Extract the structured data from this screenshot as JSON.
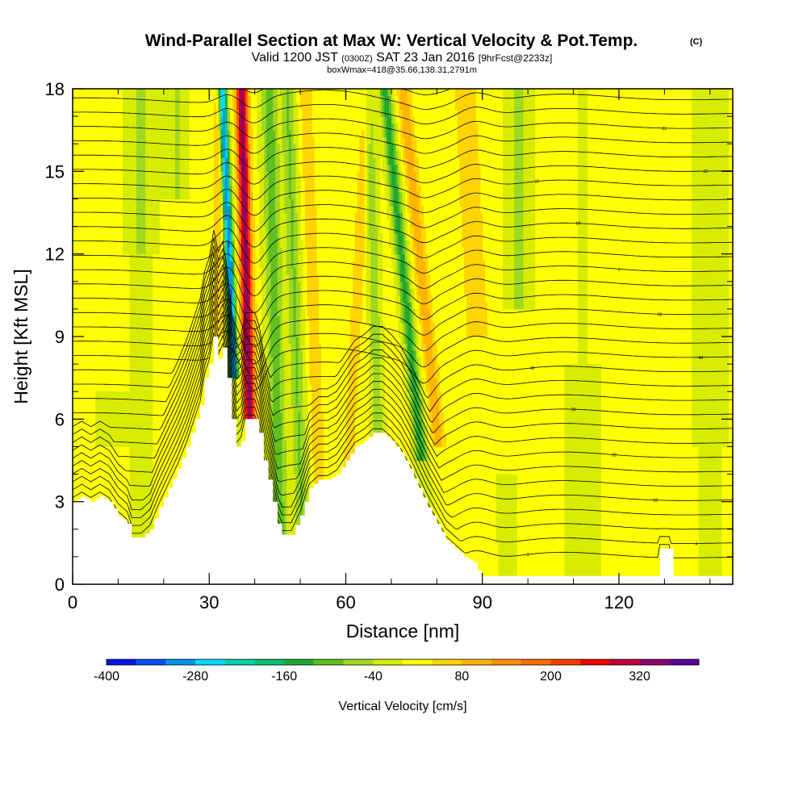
{
  "chart_data": {
    "type": "heatmap",
    "title": "Wind-Parallel Section at Max W: Vertical Velocity & Pot.Temp.",
    "title_mark": "(C)",
    "subtitle_parts": [
      "Valid 1200 JST",
      "(0300Z)",
      "SAT 23 Jan 2016",
      "[9hrFcst@2233z]"
    ],
    "subtitle2": "boxWmax=418@35.66,138.31,2791m",
    "xlabel": "Distance [nm]",
    "ylabel": "Height [Kft MSL]",
    "xlim": [
      0,
      145
    ],
    "ylim": [
      0,
      18
    ],
    "xticks": [
      0,
      30,
      60,
      90,
      120
    ],
    "xtick_labels": [
      "0",
      "30",
      "60",
      "90",
      "120"
    ],
    "yticks": [
      0,
      3,
      6,
      9,
      12,
      15,
      18
    ],
    "ytick_labels": [
      "0",
      "3",
      "6",
      "9",
      "12",
      "15",
      "18"
    ],
    "grid": false,
    "colorbar": {
      "title": "Vertical Velocity [cm/s]",
      "min": -400,
      "max": 400,
      "step": 40,
      "tick_values": [
        -400,
        -280,
        -160,
        -40,
        80,
        200,
        320
      ],
      "tick_labels": [
        "-400",
        "-280",
        "-160",
        "-40",
        "80",
        "200",
        "320"
      ],
      "colors": [
        "#0a14e6",
        "#0050f0",
        "#0094f0",
        "#00dcff",
        "#00d0a8",
        "#00c070",
        "#20a830",
        "#60c020",
        "#a0d820",
        "#d8ec00",
        "#ffff00",
        "#ffd400",
        "#ffb400",
        "#ff9000",
        "#ff6c00",
        "#ff3c00",
        "#ee0000",
        "#c0003a",
        "#8c006c",
        "#5a0096"
      ]
    },
    "terrain": {
      "x": [
        0,
        2,
        4,
        6,
        8,
        10,
        12,
        13,
        15,
        17,
        19,
        21,
        23,
        25,
        27,
        28,
        29,
        30,
        31,
        32,
        33,
        34,
        35,
        36,
        37,
        38,
        39,
        40,
        41,
        42,
        43,
        44,
        45,
        46,
        48,
        50,
        52,
        54,
        56,
        58,
        60,
        62,
        64,
        66,
        68,
        70,
        72,
        74,
        76,
        78,
        80,
        82,
        84,
        86,
        88,
        89,
        90,
        92,
        95,
        100,
        105,
        110,
        115,
        120,
        125,
        126,
        128,
        129,
        130,
        131,
        132,
        134,
        136,
        140,
        145
      ],
      "height": [
        3.0,
        3.2,
        3.0,
        3.2,
        3.0,
        2.5,
        2.2,
        1.7,
        1.7,
        2.0,
        2.8,
        3.5,
        4.2,
        5.0,
        6.0,
        6.5,
        7.5,
        8.0,
        9.0,
        8.2,
        8.6,
        7.5,
        6.0,
        5.0,
        5.2,
        6.0,
        6.0,
        6.0,
        5.5,
        4.5,
        3.8,
        3.0,
        2.2,
        1.8,
        1.8,
        2.5,
        3.5,
        3.8,
        3.8,
        4.0,
        4.5,
        5.0,
        5.2,
        5.5,
        5.5,
        5.2,
        4.8,
        4.2,
        3.5,
        2.8,
        2.2,
        1.6,
        1.3,
        1.0,
        0.8,
        0.5,
        0.3,
        0.3,
        0.3,
        0.3,
        0.3,
        0.3,
        0.3,
        0.3,
        0.3,
        0.3,
        0.3,
        1.3,
        1.3,
        1.3,
        0.3,
        0.3,
        0.3,
        0.3,
        0.3
      ]
    },
    "vertical_velocity_features": [
      {
        "name": "lee-downdraft",
        "x_center": 34.5,
        "z_bottom": 7.0,
        "z_top": 18.0,
        "peak": -330
      },
      {
        "name": "updraft-main",
        "x_center": 38.0,
        "z_bottom": 6.0,
        "z_top": 18.0,
        "peak": 260
      },
      {
        "name": "secondary-updraft",
        "x_center": 53.0,
        "z_bottom": 5.0,
        "z_top": 18.0,
        "peak": 60
      },
      {
        "name": "secondary-downdraft",
        "x_center": 45.0,
        "z_bottom": 5.0,
        "z_top": 18.0,
        "peak": -100
      },
      {
        "name": "ridge2-downdraft",
        "x_center": 74.0,
        "z_bottom": 4.5,
        "z_top": 18.0,
        "peak": -140
      },
      {
        "name": "ridge2-updraft",
        "x_center": 78.0,
        "z_bottom": 5.0,
        "z_top": 18.0,
        "peak": 90
      },
      {
        "name": "upwave",
        "x_center": 88.0,
        "z_bottom": 9.0,
        "z_top": 18.0,
        "peak": 70
      }
    ],
    "theta_contour_labels": [
      "1",
      "4",
      "7",
      "10",
      "13",
      "16",
      "19",
      "22",
      "25",
      "28",
      "31",
      "34",
      "37",
      "40",
      "43",
      "46",
      "49",
      "52",
      "55",
      "58"
    ]
  }
}
